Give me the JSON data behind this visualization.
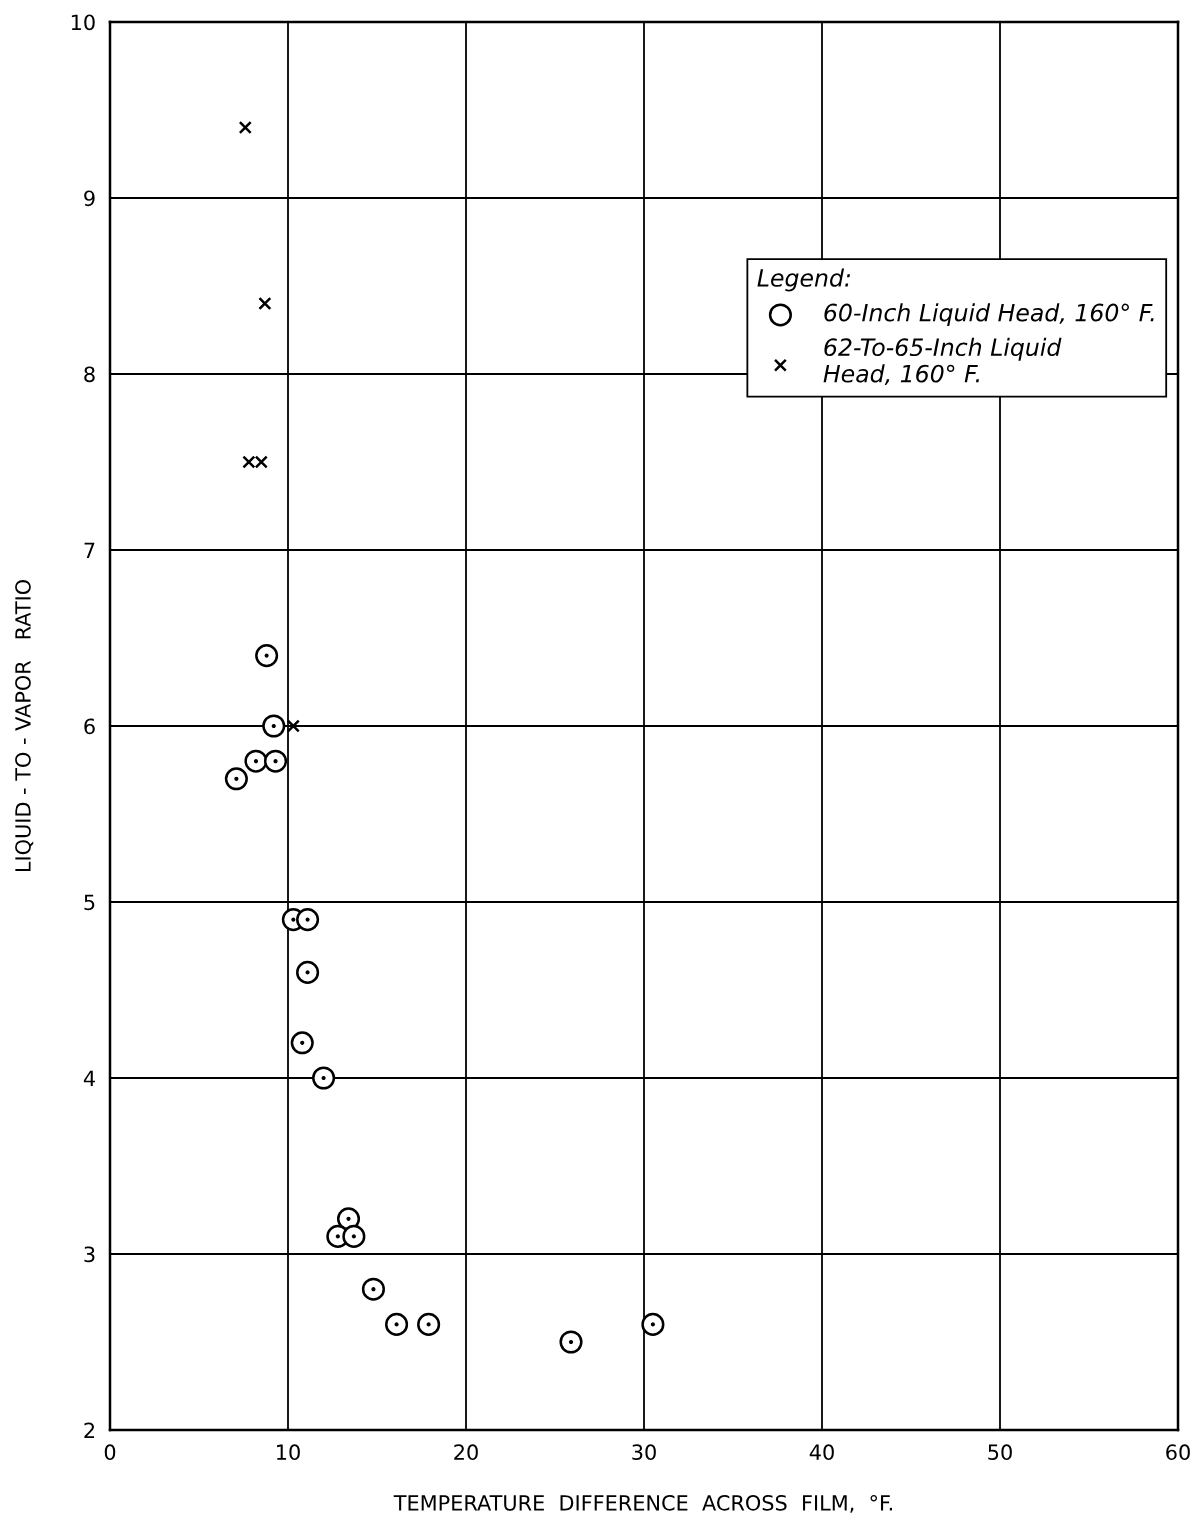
{
  "chart_data": {
    "type": "scatter",
    "xlabel": "TEMPERATURE  DIFFERENCE  ACROSS  FILM,  °F.",
    "ylabel": "LIQUID - TO - VAPOR   RATIO",
    "legend_title": "Legend:",
    "legend": "top right",
    "grid": true,
    "xlim": [
      0,
      60
    ],
    "xticks": [
      0,
      10,
      20,
      30,
      40,
      50,
      60
    ],
    "ylim": [
      2,
      10
    ],
    "yticks": [
      2,
      3,
      4,
      5,
      6,
      7,
      8,
      9,
      10
    ],
    "series": [
      {
        "name": "60-Inch Liquid Head, 160° F.",
        "color": "#000000",
        "marker": "circle",
        "x": [
          7.1,
          8.8,
          9.2,
          8.2,
          9.3,
          10.3,
          11.1,
          11.1,
          10.8,
          12.0,
          13.4,
          12.8,
          13.7,
          14.8,
          16.1,
          17.9,
          25.9,
          30.5
        ],
        "values": [
          5.7,
          6.4,
          6.0,
          5.8,
          5.8,
          4.9,
          4.9,
          4.6,
          4.2,
          4.0,
          3.2,
          3.1,
          3.1,
          2.8,
          2.6,
          2.6,
          2.5,
          2.6
        ]
      },
      {
        "name": "62-To-65-Inch Liquid\nHead, 160° F.",
        "color": "#000000",
        "marker": "cross",
        "x": [
          7.6,
          8.7,
          7.8,
          8.5,
          10.3
        ],
        "values": [
          9.4,
          8.4,
          7.5,
          7.5,
          6.0
        ]
      }
    ]
  }
}
